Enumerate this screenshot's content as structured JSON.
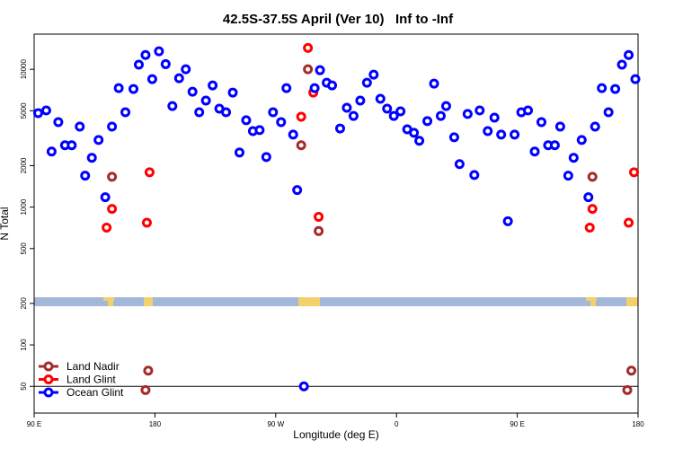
{
  "chart_data": {
    "type": "scatter",
    "title": "42.5S-37.5S April (Ver 10)   Inf to -Inf",
    "x_label": "Longitude (deg E)",
    "y_label": "N Total",
    "xlim": [
      90,
      540
    ],
    "xticks": [
      {
        "value": 90,
        "label": "90 E"
      },
      {
        "value": 180,
        "label": "180"
      },
      {
        "value": 270,
        "label": "90 W"
      },
      {
        "value": 360,
        "label": "0"
      },
      {
        "value": 450,
        "label": "90 E"
      },
      {
        "value": 540,
        "label": "180"
      }
    ],
    "ylim": [
      32,
      18000
    ],
    "yticks": [
      50,
      100,
      200,
      500,
      1000,
      2000,
      5000,
      10000
    ],
    "log_y": true,
    "legend": "bottom-left",
    "series": [
      {
        "name": "Land Nadir",
        "color": "#a52a2a",
        "x": [
          148,
          175,
          173,
          289,
          294,
          302,
          506,
          535,
          532
        ],
        "values": [
          1660,
          65,
          47,
          2810,
          10000,
          670,
          1660,
          65,
          47
        ]
      },
      {
        "name": "Land Glint",
        "color": "#ff0000",
        "x": [
          144,
          148,
          174,
          176,
          289,
          294,
          298,
          302,
          504,
          506,
          533,
          537
        ],
        "values": [
          710,
          970,
          770,
          1790,
          4530,
          14300,
          6780,
          850,
          710,
          970,
          770,
          1790
        ]
      },
      {
        "name": "Ocean Glint",
        "color": "#0000ff",
        "x": [
          93,
          99,
          103,
          108,
          113,
          118,
          124,
          128,
          133,
          138,
          143,
          148,
          153,
          158,
          164,
          168,
          173,
          178,
          183,
          188,
          193,
          198,
          203,
          208,
          213,
          218,
          223,
          228,
          233,
          238,
          243,
          248,
          253,
          258,
          263,
          268,
          274,
          278,
          283,
          286,
          291,
          299,
          303,
          308,
          312,
          318,
          323,
          328,
          333,
          338,
          343,
          348,
          353,
          358,
          363,
          368,
          373,
          377,
          383,
          388,
          393,
          397,
          403,
          407,
          413,
          418,
          422,
          428,
          433,
          438,
          443,
          448,
          453,
          458,
          463,
          468,
          473,
          478,
          482,
          488,
          492,
          498,
          503,
          508,
          513,
          518,
          523,
          528,
          533,
          538
        ],
        "values": [
          4810,
          5030,
          2530,
          4140,
          2810,
          2810,
          3840,
          1690,
          2280,
          3070,
          1180,
          3840,
          7300,
          4880,
          7200,
          10800,
          12700,
          8480,
          13500,
          10900,
          5410,
          8610,
          10000,
          6880,
          4880,
          5930,
          7640,
          5180,
          4880,
          6780,
          2490,
          4270,
          3560,
          3620,
          2310,
          4880,
          4140,
          7300,
          3360,
          1330,
          50,
          7300,
          9850,
          7990,
          7640,
          3720,
          5260,
          4590,
          5930,
          7990,
          9140,
          6110,
          5180,
          4590,
          4950,
          3670,
          3460,
          3030,
          4210,
          7870,
          4590,
          5410,
          3210,
          2050,
          4740,
          1710,
          5030,
          3560,
          4460,
          3360,
          790,
          3360,
          4880,
          5030,
          2530,
          4140,
          2810,
          2810,
          3840,
          1690,
          2280,
          3070,
          1180,
          3840,
          7300,
          4880,
          7200,
          10800,
          12700,
          8480
        ]
      }
    ]
  }
}
